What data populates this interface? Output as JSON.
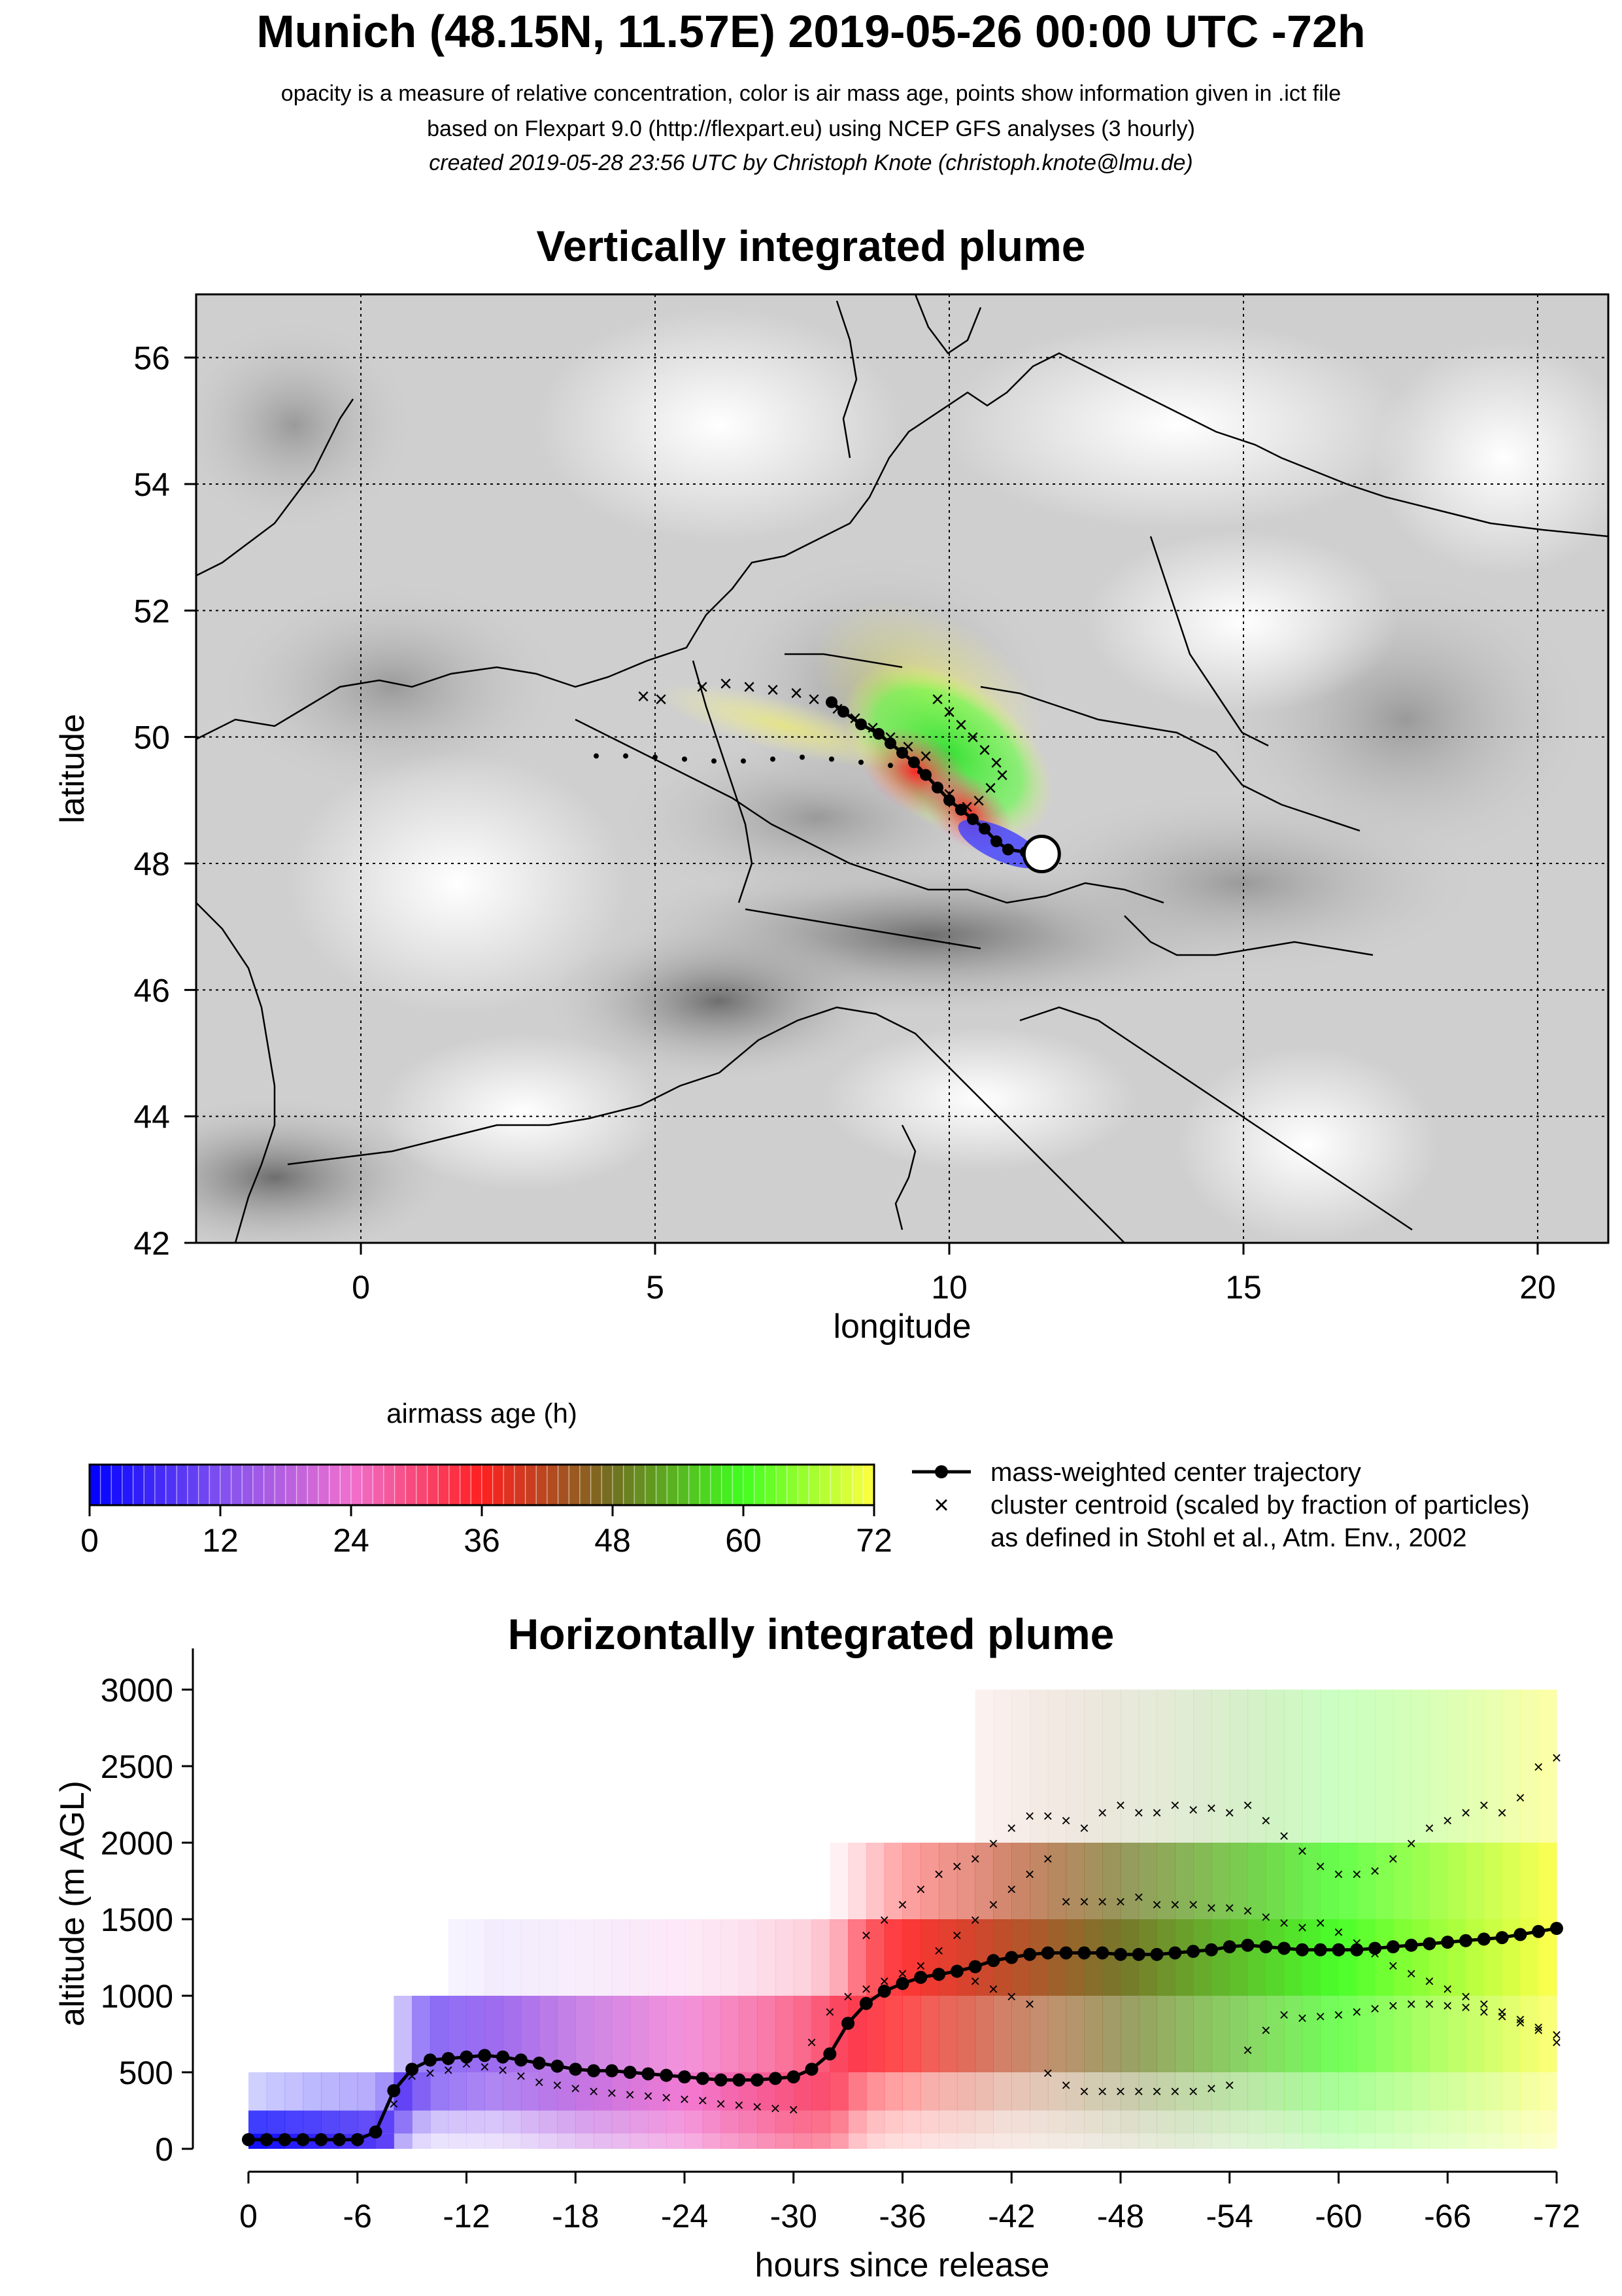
{
  "header": {
    "title": "Munich (48.15N, 11.57E) 2019-05-26 00:00 UTC -72h",
    "subtitle_1": "opacity is a measure of relative concentration, color is air mass age, points show information given in .ict file",
    "subtitle_2": "based on Flexpart 9.0 (http://flexpart.eu) using NCEP GFS analyses (3 hourly)",
    "subtitle_3": "created 2019-05-28 23:56 UTC by Christoph Knote (christoph.knote@lmu.de)"
  },
  "colors": {
    "age_0": "#0000ff",
    "age_12": "#8050f0",
    "age_24": "#f070d0",
    "age_36": "#ff2020",
    "age_48": "#707020",
    "age_60": "#40ff20",
    "age_72": "#ffff40"
  },
  "chart_data": [
    {
      "type": "heatmap",
      "title": "Vertically integrated plume",
      "xlabel": "longitude",
      "ylabel": "latitude",
      "xlim": [
        -2.8,
        21.2
      ],
      "ylim": [
        42,
        57
      ],
      "x_ticks": [
        "0",
        "5",
        "10",
        "15",
        "20"
      ],
      "y_ticks": [
        "42",
        "44",
        "46",
        "48",
        "50",
        "52",
        "54",
        "56"
      ],
      "grid": true,
      "release_point": {
        "lon": 11.57,
        "lat": 48.15
      },
      "series": [
        {
          "kind": "mass-weighted center trajectory",
          "points": [
            [
              11.57,
              48.15
            ],
            [
              11.3,
              48.18
            ],
            [
              11.0,
              48.22
            ],
            [
              10.8,
              48.35
            ],
            [
              10.6,
              48.55
            ],
            [
              10.4,
              48.7
            ],
            [
              10.2,
              48.85
            ],
            [
              10.0,
              49.0
            ],
            [
              9.8,
              49.2
            ],
            [
              9.6,
              49.4
            ],
            [
              9.4,
              49.6
            ],
            [
              9.2,
              49.75
            ],
            [
              9.0,
              49.9
            ],
            [
              8.8,
              50.05
            ],
            [
              8.5,
              50.2
            ],
            [
              8.2,
              50.4
            ],
            [
              8.0,
              50.55
            ]
          ]
        },
        {
          "kind": "cluster centroid",
          "points": [
            [
              4.8,
              50.65
            ],
            [
              5.1,
              50.6
            ],
            [
              5.8,
              50.8
            ],
            [
              6.2,
              50.85
            ],
            [
              6.6,
              50.8
            ],
            [
              7.0,
              50.75
            ],
            [
              7.4,
              50.7
            ],
            [
              7.7,
              50.6
            ],
            [
              8.1,
              50.45
            ],
            [
              8.4,
              50.3
            ],
            [
              8.7,
              50.15
            ],
            [
              9.0,
              50.0
            ],
            [
              9.3,
              49.85
            ],
            [
              9.6,
              49.7
            ],
            [
              9.8,
              50.6
            ],
            [
              10.0,
              50.4
            ],
            [
              10.2,
              50.2
            ],
            [
              10.4,
              50.0
            ],
            [
              10.6,
              49.8
            ],
            [
              10.8,
              49.6
            ],
            [
              10.9,
              49.4
            ],
            [
              10.7,
              49.2
            ],
            [
              10.5,
              49.0
            ],
            [
              10.3,
              48.9
            ],
            [
              10.0,
              49.1
            ]
          ]
        },
        {
          "kind": "cluster centroid (small)",
          "points": [
            [
              4.0,
              49.7
            ],
            [
              4.5,
              49.7
            ],
            [
              5.0,
              49.68
            ],
            [
              5.5,
              49.65
            ],
            [
              6.0,
              49.62
            ],
            [
              6.5,
              49.62
            ],
            [
              7.0,
              49.65
            ],
            [
              7.5,
              49.68
            ],
            [
              8.0,
              49.65
            ],
            [
              8.5,
              49.6
            ],
            [
              9.0,
              49.55
            ],
            [
              9.5,
              49.45
            ]
          ]
        }
      ],
      "colorbar": {
        "label": "airmass age (h)",
        "ticks": [
          "0",
          "12",
          "24",
          "36",
          "48",
          "60",
          "72"
        ],
        "range": [
          0,
          72
        ]
      },
      "legend": {
        "placement": "right of colorbar",
        "entries": [
          "mass-weighted center trajectory",
          "cluster centroid (scaled by fraction of particles)",
          "as defined in Stohl et al., Atm. Env., 2002"
        ]
      }
    },
    {
      "type": "heatmap",
      "title": "Horizontally integrated plume",
      "xlabel": "hours since release",
      "ylabel": "altitude (m AGL)",
      "xlim": [
        0,
        -72
      ],
      "ylim": [
        0,
        3000
      ],
      "x_ticks": [
        "0",
        "-6",
        "-12",
        "-18",
        "-24",
        "-30",
        "-36",
        "-42",
        "-48",
        "-54",
        "-60",
        "-66",
        "-72"
      ],
      "y_ticks": [
        "0",
        "500",
        "1000",
        "1500",
        "2000",
        "2500",
        "3000"
      ],
      "series": [
        {
          "kind": "mass-weighted center trajectory",
          "x": [
            0,
            -1,
            -2,
            -3,
            -4,
            -5,
            -6,
            -7,
            -8,
            -9,
            -10,
            -11,
            -12,
            -13,
            -14,
            -15,
            -16,
            -17,
            -18,
            -19,
            -20,
            -21,
            -22,
            -23,
            -24,
            -25,
            -26,
            -27,
            -28,
            -29,
            -30,
            -31,
            -32,
            -33,
            -34,
            -35,
            -36,
            -37,
            -38,
            -39,
            -40,
            -41,
            -42,
            -43,
            -44,
            -45,
            -46,
            -47,
            -48,
            -49,
            -50,
            -51,
            -52,
            -53,
            -54,
            -55,
            -56,
            -57,
            -58,
            -59,
            -60,
            -61,
            -62,
            -63,
            -64,
            -65,
            -66,
            -67,
            -68,
            -69,
            -70,
            -71,
            -72
          ],
          "y": [
            60,
            60,
            60,
            60,
            60,
            60,
            60,
            110,
            380,
            520,
            580,
            590,
            600,
            610,
            600,
            580,
            560,
            540,
            520,
            510,
            510,
            500,
            490,
            480,
            470,
            460,
            450,
            450,
            450,
            460,
            470,
            520,
            620,
            820,
            950,
            1030,
            1080,
            1120,
            1140,
            1160,
            1190,
            1230,
            1250,
            1270,
            1280,
            1280,
            1280,
            1280,
            1270,
            1270,
            1270,
            1280,
            1290,
            1300,
            1320,
            1330,
            1320,
            1310,
            1300,
            1300,
            1300,
            1300,
            1310,
            1320,
            1330,
            1340,
            1350,
            1360,
            1370,
            1380,
            1400,
            1420,
            1440
          ]
        },
        {
          "kind": "cluster centroid",
          "x": [
            -8,
            -9,
            -10,
            -11,
            -12,
            -13,
            -14,
            -15,
            -16,
            -17,
            -18,
            -19,
            -20,
            -21,
            -22,
            -23,
            -24,
            -25,
            -26,
            -27,
            -28,
            -29,
            -30,
            -31,
            -32,
            -33,
            -34,
            -35,
            -36,
            -37,
            -38,
            -39,
            -40,
            -41,
            -42,
            -43,
            -44,
            -45,
            -46,
            -47,
            -48,
            -49,
            -50,
            -51,
            -52,
            -53,
            -54,
            -55,
            -56,
            -57,
            -58,
            -59,
            -60,
            -61,
            -62,
            -63,
            -64,
            -65,
            -66,
            -67,
            -68,
            -69,
            -70,
            -71,
            -72
          ],
          "y": [
            300,
            480,
            500,
            520,
            560,
            540,
            520,
            480,
            440,
            420,
            400,
            380,
            370,
            360,
            350,
            340,
            330,
            320,
            300,
            290,
            280,
            270,
            260,
            700,
            900,
            1000,
            1050,
            1100,
            1150,
            1200,
            1300,
            1400,
            1500,
            1600,
            1700,
            1800,
            1900,
            1620,
            1620,
            1620,
            1620,
            1650,
            1600,
            1600,
            1600,
            1580,
            1580,
            1560,
            1520,
            1480,
            1450,
            1480,
            1420,
            1350,
            1280,
            1200,
            1150,
            1100,
            1050,
            1000,
            950,
            900,
            850,
            800,
            750
          ]
        },
        {
          "kind": "cluster centroid (low branch)",
          "x": [
            -40,
            -41,
            -42,
            -43,
            -44,
            -45,
            -46,
            -47,
            -48,
            -49,
            -50,
            -51,
            -52,
            -53,
            -54,
            -55,
            -56,
            -57,
            -58,
            -59,
            -60,
            -61,
            -62,
            -63,
            -64,
            -65,
            -66,
            -67,
            -68,
            -69,
            -70,
            -71,
            -72
          ],
          "y": [
            1100,
            1050,
            1000,
            950,
            500,
            420,
            380,
            380,
            380,
            380,
            380,
            380,
            380,
            400,
            420,
            650,
            780,
            880,
            860,
            870,
            880,
            900,
            920,
            940,
            950,
            950,
            940,
            930,
            900,
            870,
            830,
            780,
            700
          ]
        },
        {
          "kind": "cluster centroid (upper branch)",
          "x": [
            -34,
            -35,
            -36,
            -37,
            -38,
            -39,
            -40,
            -41,
            -42,
            -43,
            -44,
            -45,
            -46,
            -47,
            -48,
            -49,
            -50,
            -51,
            -52,
            -53,
            -54,
            -55,
            -56,
            -57,
            -58,
            -59,
            -60,
            -61,
            -62,
            -63,
            -64,
            -65,
            -66,
            -67,
            -68,
            -69,
            -70,
            -71,
            -72
          ],
          "y": [
            1400,
            1500,
            1600,
            1700,
            1800,
            1850,
            1900,
            2000,
            2100,
            2180,
            2180,
            2150,
            2100,
            2200,
            2250,
            2200,
            2200,
            2250,
            2220,
            2230,
            2200,
            2250,
            2150,
            2050,
            1950,
            1850,
            1800,
            1800,
            1820,
            1900,
            2000,
            2100,
            2150,
            2200,
            2250,
            2200,
            2300,
            2500,
            2560
          ]
        }
      ]
    }
  ]
}
